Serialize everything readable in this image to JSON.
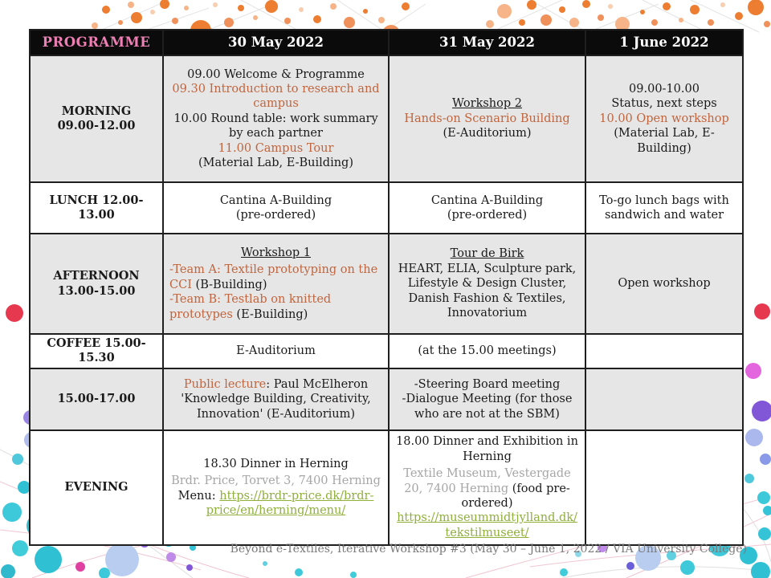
{
  "header": {
    "title": "PROGRAMME",
    "dates": [
      "30 May 2022",
      "31 May 2022",
      "1 June 2022"
    ]
  },
  "rows": [
    {
      "id": "morning",
      "shaded": true,
      "label_lines": [
        "MORNING",
        "09.00-12.00"
      ],
      "cells": [
        [
          {
            "segs": [
              {
                "t": "09.00 Welcome & Programme"
              }
            ]
          },
          {
            "segs": [
              {
                "t": "09.30 Introduction to research and campus",
                "s": "accent"
              }
            ]
          },
          {
            "segs": [
              {
                "t": "10.00 Round table: work summary by each partner"
              }
            ]
          },
          {
            "segs": [
              {
                "t": "11.00 Campus Tour",
                "s": "accent"
              }
            ]
          },
          {
            "segs": [
              {
                "t": "(Material Lab, E-Building)"
              }
            ]
          }
        ],
        [
          {
            "segs": [
              {
                "t": "Workshop 2",
                "s": "u"
              }
            ]
          },
          {
            "segs": [
              {
                "t": "Hands-on Scenario Building",
                "s": "accent"
              }
            ]
          },
          {
            "segs": [
              {
                "t": "(E-Auditorium)"
              }
            ]
          }
        ],
        [
          {
            "segs": [
              {
                "t": "09.00-10.00"
              }
            ]
          },
          {
            "segs": [
              {
                "t": "Status, next steps"
              }
            ]
          },
          {
            "segs": [
              {
                "t": "10.00 Open workshop",
                "s": "accent"
              }
            ]
          },
          {
            "segs": [
              {
                "t": "(Material Lab, E-Building)"
              }
            ]
          }
        ]
      ]
    },
    {
      "id": "lunch",
      "shaded": false,
      "label_lines": [
        "LUNCH 12.00-13.00"
      ],
      "cells": [
        [
          {
            "segs": [
              {
                "t": "Cantina A-Building"
              }
            ]
          },
          {
            "segs": [
              {
                "t": "(pre-ordered)"
              }
            ]
          }
        ],
        [
          {
            "segs": [
              {
                "t": "Cantina A-Building"
              }
            ]
          },
          {
            "segs": [
              {
                "t": "(pre-ordered)"
              }
            ]
          }
        ],
        [
          {
            "segs": [
              {
                "t": "To-go lunch bags with sandwich and water"
              }
            ]
          }
        ]
      ]
    },
    {
      "id": "afternoon",
      "shaded": true,
      "label_lines": [
        "AFTERNOON",
        "13.00-15.00"
      ],
      "cells": [
        [
          {
            "segs": [
              {
                "t": "Workshop 1",
                "s": "u"
              }
            ]
          },
          {
            "align": "left",
            "gap": true,
            "segs": [
              {
                "t": "-Team A: Textile prototyping on the CCI",
                "s": "accent"
              },
              {
                "t": " (B-Building)"
              }
            ]
          },
          {
            "align": "left",
            "segs": [
              {
                "t": "-Team B: Testlab on knitted prototypes",
                "s": "accent"
              },
              {
                "t": " (E-Building)"
              }
            ]
          }
        ],
        [
          {
            "segs": [
              {
                "t": "Tour de Birk",
                "s": "u"
              }
            ]
          },
          {
            "segs": [
              {
                "t": "HEART, ELIA, Sculpture park, Lifestyle & Design Cluster, Danish Fashion & Textiles, Innovatorium"
              }
            ]
          }
        ],
        [
          {
            "segs": [
              {
                "t": "Open workshop"
              }
            ]
          }
        ]
      ]
    },
    {
      "id": "coffee",
      "shaded": false,
      "label_lines": [
        "COFFEE 15.00-15.30"
      ],
      "cells": [
        [
          {
            "segs": [
              {
                "t": "E-Auditorium"
              }
            ]
          }
        ],
        [
          {
            "segs": [
              {
                "t": "(at the 15.00 meetings)"
              }
            ]
          }
        ],
        []
      ]
    },
    {
      "id": "slot1500",
      "shaded": true,
      "label_lines": [
        "15.00-17.00"
      ],
      "cells": [
        [
          {
            "segs": [
              {
                "t": "Public lecture",
                "s": "accent"
              },
              {
                "t": ":  Paul McElheron 'Knowledge Building, Creativity, Innovation' (E-Auditorium)"
              }
            ]
          }
        ],
        [
          {
            "segs": [
              {
                "t": "-Steering Board meeting"
              }
            ]
          },
          {
            "segs": [
              {
                "t": "-Dialogue Meeting (for those who are not at the SBM)"
              }
            ]
          }
        ],
        []
      ]
    },
    {
      "id": "evening",
      "shaded": false,
      "label_lines": [
        "EVENING"
      ],
      "cells": [
        [
          {
            "segs": [
              {
                "t": "18.30 Dinner in Herning"
              }
            ]
          },
          {
            "gap": true,
            "segs": [
              {
                "t": "Brdr. Price, Torvet 3, 7400 Herning",
                "s": "gray"
              }
            ]
          },
          {
            "segs": [
              {
                "t": "Menu: "
              },
              {
                "t": "https://brdr-price.dk/brdr-price/en/herning/menu/",
                "s": "link",
                "id": "brdr-price-menu-link"
              }
            ]
          }
        ],
        [
          {
            "segs": [
              {
                "t": "18.00 Dinner and Exhibition in Herning"
              }
            ]
          },
          {
            "gap": true,
            "segs": [
              {
                "t": "Textile Museum, Vestergade 20, 7400 Herning",
                "s": "gray"
              },
              {
                "t": " (food pre-ordered)"
              }
            ]
          },
          {
            "segs": [
              {
                "t": "https://museummidtjylland.dk/tekstilmuseet/",
                "s": "link",
                "id": "textile-museum-link"
              }
            ]
          }
        ],
        []
      ]
    }
  ],
  "footer": "Beyond e-Textiles, Iterative Workshop #3 (May 30 – June 1, 2022 / VIA University College)",
  "colors": {
    "accent_rust": "#c0653e",
    "title_pink": "#ee7fb4",
    "link_green": "#8fb03a",
    "muted_gray": "#a6a6a6",
    "header_bg": "#0b0b0b",
    "shaded_row_bg": "#e7e6e6",
    "bubble_orange": "#ed7d31",
    "bubble_teal": "#3ec9db",
    "bubble_purple": "#8157d8"
  }
}
